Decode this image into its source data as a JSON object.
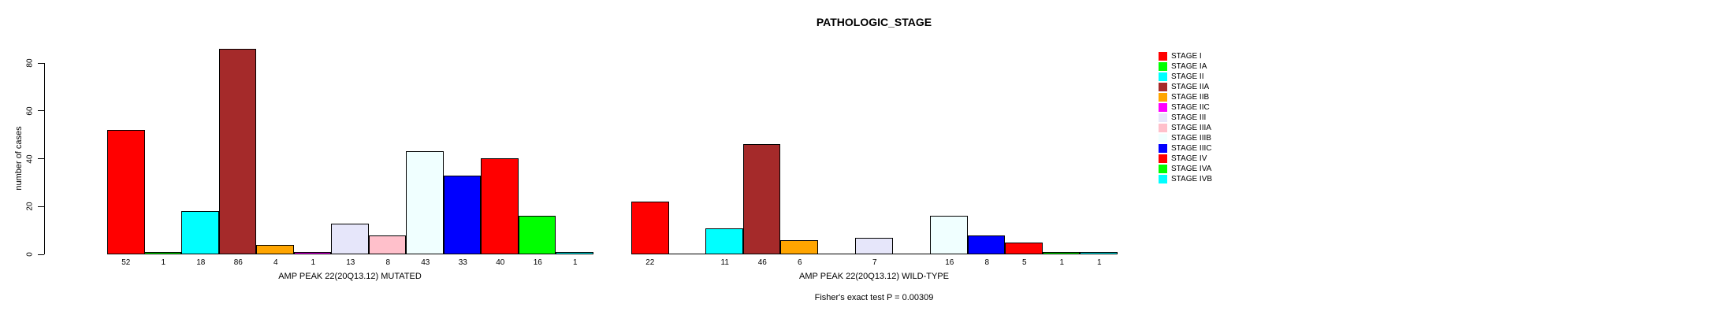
{
  "title": "PATHOLOGIC_STAGE",
  "chart_data": {
    "type": "bar",
    "title": "PATHOLOGIC_STAGE",
    "ylabel": "number of cases",
    "ylim": [
      0,
      86
    ],
    "yticks": [
      0,
      20,
      40,
      60,
      80
    ],
    "grid": false,
    "legend_position": "right",
    "categories": [
      "STAGE I",
      "STAGE IA",
      "STAGE II",
      "STAGE IIA",
      "STAGE IIB",
      "STAGE IIC",
      "STAGE III",
      "STAGE IIIA",
      "STAGE IIIB",
      "STAGE IIIC",
      "STAGE IV",
      "STAGE IVA",
      "STAGE IVB"
    ],
    "colors": [
      "#FF0000",
      "#00FF00",
      "#00FFFF",
      "#A52A2A",
      "#FFA500",
      "#FF00FF",
      "#E6E6FA",
      "#FFC0CB",
      "#F0FFFF",
      "#0000FF",
      "#FF0000",
      "#00FF00",
      "#00FFFF"
    ],
    "legend": [
      {
        "label": "STAGE I",
        "color": "#FF0000"
      },
      {
        "label": "STAGE IA",
        "color": "#00FF00"
      },
      {
        "label": "STAGE II",
        "color": "#00FFFF"
      },
      {
        "label": "STAGE IIA",
        "color": "#A52A2A"
      },
      {
        "label": "STAGE IIB",
        "color": "#FFA500"
      },
      {
        "label": "STAGE IIC",
        "color": "#FF00FF"
      },
      {
        "label": "STAGE III",
        "color": "#E6E6FA"
      },
      {
        "label": "STAGE IIIA",
        "color": "#FFC0CB"
      },
      {
        "label": "STAGE IIIB",
        "color": "#F0FFFF"
      },
      {
        "label": "STAGE IIIC",
        "color": "#0000FF"
      },
      {
        "label": "STAGE IV",
        "color": "#FF0000"
      },
      {
        "label": "STAGE IVA",
        "color": "#00FF00"
      },
      {
        "label": "STAGE IVB",
        "color": "#00FFFF"
      }
    ],
    "panels": [
      {
        "xlabel": "AMP PEAK 22(20Q13.12) MUTATED",
        "values": [
          52,
          1,
          18,
          86,
          4,
          1,
          13,
          8,
          43,
          33,
          40,
          16,
          1
        ],
        "bar_labels": [
          "52",
          "1",
          "18",
          "86",
          "4",
          "1",
          "13",
          "8",
          "43",
          "33",
          "40",
          "16",
          "1"
        ]
      },
      {
        "xlabel": "AMP PEAK 22(20Q13.12) WILD-TYPE",
        "values": [
          22,
          0,
          11,
          46,
          6,
          0,
          7,
          0,
          16,
          8,
          5,
          1,
          1
        ],
        "bar_labels": [
          "22",
          "",
          "11",
          "46",
          "6",
          "",
          "7",
          "",
          "16",
          "8",
          "5",
          "1",
          "1"
        ]
      }
    ],
    "footnote": "Fisher's exact test P = 0.00309"
  }
}
